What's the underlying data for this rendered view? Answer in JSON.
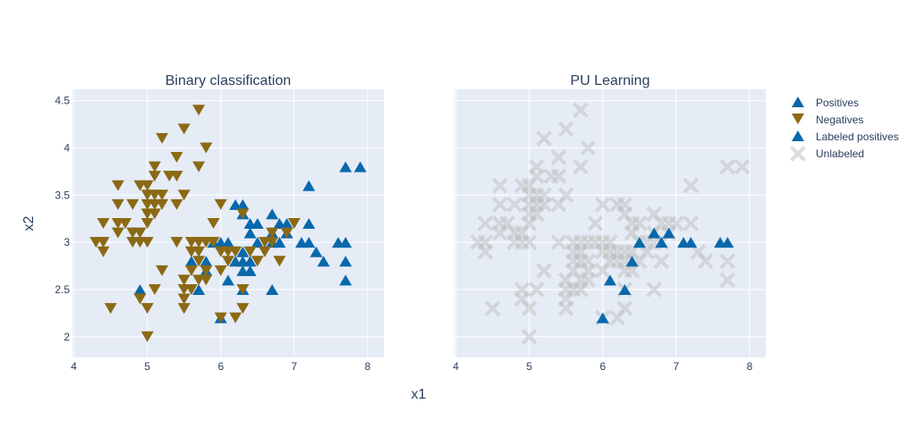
{
  "chart_data": {
    "type": "scatter",
    "xlabel": "x1",
    "ylabel": "x2",
    "xlim": [
      3.98,
      8.22
    ],
    "ylim": [
      1.78,
      4.62
    ],
    "xticks": [
      "4",
      "5",
      "6",
      "7",
      "8"
    ],
    "yticks": [
      "2",
      "2.5",
      "3",
      "3.5",
      "4",
      "4.5"
    ],
    "grid": true,
    "legend_position": "top-right",
    "colors": {
      "positive": "#0868ac",
      "negative": "#8b6914",
      "unlabeled": "#c0c0c0",
      "plot_bg": "#e5ecf6",
      "grid": "#ffffff",
      "text": "#2a3f5f"
    },
    "legend": [
      "Positives",
      "Negatives",
      "Labeled positives",
      "Unlabeled"
    ],
    "panels": [
      {
        "title": "Binary classification",
        "series": [
          {
            "name": "Positives",
            "marker": "triangle-up",
            "points": [
              [
                4.9,
                2.5
              ],
              [
                5.6,
                2.8
              ],
              [
                5.7,
                2.5
              ],
              [
                5.8,
                2.7
              ],
              [
                5.8,
                2.8
              ],
              [
                5.9,
                3.0
              ],
              [
                6.0,
                2.2
              ],
              [
                6.0,
                3.0
              ],
              [
                6.1,
                2.6
              ],
              [
                6.1,
                3.0
              ],
              [
                6.2,
                2.8
              ],
              [
                6.2,
                3.4
              ],
              [
                6.3,
                2.5
              ],
              [
                6.3,
                2.7
              ],
              [
                6.3,
                2.8
              ],
              [
                6.3,
                2.9
              ],
              [
                6.3,
                3.3
              ],
              [
                6.3,
                3.4
              ],
              [
                6.4,
                2.7
              ],
              [
                6.4,
                2.8
              ],
              [
                6.4,
                3.1
              ],
              [
                6.4,
                3.2
              ],
              [
                6.5,
                3.0
              ],
              [
                6.5,
                3.2
              ],
              [
                6.7,
                2.5
              ],
              [
                6.7,
                3.0
              ],
              [
                6.7,
                3.1
              ],
              [
                6.7,
                3.3
              ],
              [
                6.8,
                3.0
              ],
              [
                6.8,
                3.2
              ],
              [
                6.9,
                3.1
              ],
              [
                6.9,
                3.2
              ],
              [
                7.1,
                3.0
              ],
              [
                7.2,
                3.0
              ],
              [
                7.2,
                3.2
              ],
              [
                7.2,
                3.6
              ],
              [
                7.3,
                2.9
              ],
              [
                7.4,
                2.8
              ],
              [
                7.6,
                3.0
              ],
              [
                7.7,
                2.6
              ],
              [
                7.7,
                2.8
              ],
              [
                7.7,
                3.0
              ],
              [
                7.7,
                3.8
              ],
              [
                7.9,
                3.8
              ]
            ]
          },
          {
            "name": "Negatives",
            "marker": "triangle-down",
            "points": [
              [
                4.3,
                3.0
              ],
              [
                4.4,
                2.9
              ],
              [
                4.4,
                3.0
              ],
              [
                4.4,
                3.2
              ],
              [
                4.5,
                2.3
              ],
              [
                4.6,
                3.1
              ],
              [
                4.6,
                3.2
              ],
              [
                4.6,
                3.4
              ],
              [
                4.6,
                3.6
              ],
              [
                4.7,
                3.2
              ],
              [
                4.8,
                3.0
              ],
              [
                4.8,
                3.1
              ],
              [
                4.8,
                3.4
              ],
              [
                4.9,
                2.4
              ],
              [
                4.9,
                3.0
              ],
              [
                4.9,
                3.1
              ],
              [
                4.9,
                3.6
              ],
              [
                5.0,
                2.0
              ],
              [
                5.0,
                2.3
              ],
              [
                5.0,
                3.0
              ],
              [
                5.0,
                3.2
              ],
              [
                5.0,
                3.3
              ],
              [
                5.0,
                3.4
              ],
              [
                5.0,
                3.5
              ],
              [
                5.0,
                3.6
              ],
              [
                5.1,
                2.5
              ],
              [
                5.1,
                3.3
              ],
              [
                5.1,
                3.4
              ],
              [
                5.1,
                3.5
              ],
              [
                5.1,
                3.7
              ],
              [
                5.1,
                3.8
              ],
              [
                5.2,
                2.7
              ],
              [
                5.2,
                3.4
              ],
              [
                5.2,
                3.5
              ],
              [
                5.2,
                4.1
              ],
              [
                5.3,
                3.7
              ],
              [
                5.4,
                3.0
              ],
              [
                5.4,
                3.4
              ],
              [
                5.4,
                3.7
              ],
              [
                5.4,
                3.9
              ],
              [
                5.5,
                2.3
              ],
              [
                5.5,
                2.4
              ],
              [
                5.5,
                2.5
              ],
              [
                5.5,
                2.6
              ],
              [
                5.5,
                3.5
              ],
              [
                5.5,
                4.2
              ],
              [
                5.6,
                2.5
              ],
              [
                5.6,
                2.7
              ],
              [
                5.6,
                2.9
              ],
              [
                5.6,
                3.0
              ],
              [
                5.7,
                2.6
              ],
              [
                5.7,
                2.8
              ],
              [
                5.7,
                2.9
              ],
              [
                5.7,
                3.0
              ],
              [
                5.7,
                3.8
              ],
              [
                5.7,
                4.4
              ],
              [
                5.8,
                2.6
              ],
              [
                5.8,
                2.7
              ],
              [
                5.8,
                3.0
              ],
              [
                5.8,
                4.0
              ],
              [
                5.9,
                3.0
              ],
              [
                5.9,
                3.2
              ],
              [
                6.0,
                2.2
              ],
              [
                6.0,
                2.7
              ],
              [
                6.0,
                2.9
              ],
              [
                6.0,
                3.4
              ],
              [
                6.1,
                2.8
              ],
              [
                6.1,
                2.9
              ],
              [
                6.2,
                2.2
              ],
              [
                6.2,
                2.9
              ],
              [
                6.3,
                2.3
              ],
              [
                6.3,
                2.5
              ],
              [
                6.3,
                3.3
              ],
              [
                6.4,
                2.9
              ],
              [
                6.5,
                2.8
              ],
              [
                6.6,
                2.9
              ],
              [
                6.6,
                3.0
              ],
              [
                6.7,
                3.0
              ],
              [
                6.7,
                3.1
              ],
              [
                6.8,
                2.8
              ],
              [
                6.9,
                3.1
              ],
              [
                7.0,
                3.2
              ]
            ]
          }
        ]
      },
      {
        "title": "PU Learning",
        "series": [
          {
            "name": "Unlabeled",
            "marker": "x",
            "points": [
              [
                4.3,
                3.0
              ],
              [
                4.4,
                2.9
              ],
              [
                4.4,
                3.0
              ],
              [
                4.4,
                3.2
              ],
              [
                4.5,
                2.3
              ],
              [
                4.6,
                3.1
              ],
              [
                4.6,
                3.2
              ],
              [
                4.6,
                3.4
              ],
              [
                4.6,
                3.6
              ],
              [
                4.7,
                3.2
              ],
              [
                4.8,
                3.0
              ],
              [
                4.8,
                3.1
              ],
              [
                4.8,
                3.4
              ],
              [
                4.9,
                2.4
              ],
              [
                4.9,
                2.5
              ],
              [
                4.9,
                3.0
              ],
              [
                4.9,
                3.1
              ],
              [
                4.9,
                3.6
              ],
              [
                5.0,
                2.0
              ],
              [
                5.0,
                2.3
              ],
              [
                5.0,
                3.0
              ],
              [
                5.0,
                3.2
              ],
              [
                5.0,
                3.3
              ],
              [
                5.0,
                3.4
              ],
              [
                5.0,
                3.5
              ],
              [
                5.0,
                3.6
              ],
              [
                5.1,
                2.5
              ],
              [
                5.1,
                3.3
              ],
              [
                5.1,
                3.4
              ],
              [
                5.1,
                3.5
              ],
              [
                5.1,
                3.7
              ],
              [
                5.1,
                3.8
              ],
              [
                5.2,
                2.7
              ],
              [
                5.2,
                3.4
              ],
              [
                5.2,
                3.5
              ],
              [
                5.2,
                4.1
              ],
              [
                5.3,
                3.7
              ],
              [
                5.4,
                3.0
              ],
              [
                5.4,
                3.4
              ],
              [
                5.4,
                3.7
              ],
              [
                5.4,
                3.9
              ],
              [
                5.5,
                2.3
              ],
              [
                5.5,
                2.4
              ],
              [
                5.5,
                2.5
              ],
              [
                5.5,
                2.6
              ],
              [
                5.5,
                3.5
              ],
              [
                5.5,
                4.2
              ],
              [
                5.6,
                2.5
              ],
              [
                5.6,
                2.7
              ],
              [
                5.6,
                2.8
              ],
              [
                5.6,
                2.9
              ],
              [
                5.6,
                3.0
              ],
              [
                5.7,
                2.5
              ],
              [
                5.7,
                2.6
              ],
              [
                5.7,
                2.8
              ],
              [
                5.7,
                2.9
              ],
              [
                5.7,
                3.0
              ],
              [
                5.7,
                3.8
              ],
              [
                5.7,
                4.4
              ],
              [
                5.8,
                2.6
              ],
              [
                5.8,
                2.7
              ],
              [
                5.8,
                2.8
              ],
              [
                5.8,
                3.0
              ],
              [
                5.8,
                4.0
              ],
              [
                5.9,
                3.0
              ],
              [
                5.9,
                3.2
              ],
              [
                6.0,
                2.2
              ],
              [
                6.0,
                2.7
              ],
              [
                6.0,
                2.9
              ],
              [
                6.0,
                3.0
              ],
              [
                6.0,
                3.4
              ],
              [
                6.1,
                2.8
              ],
              [
                6.1,
                2.9
              ],
              [
                6.1,
                3.0
              ],
              [
                6.2,
                2.2
              ],
              [
                6.2,
                2.8
              ],
              [
                6.2,
                2.9
              ],
              [
                6.2,
                3.4
              ],
              [
                6.3,
                2.3
              ],
              [
                6.3,
                2.5
              ],
              [
                6.3,
                2.7
              ],
              [
                6.3,
                2.8
              ],
              [
                6.3,
                2.9
              ],
              [
                6.3,
                3.3
              ],
              [
                6.3,
                3.4
              ],
              [
                6.4,
                2.7
              ],
              [
                6.4,
                2.9
              ],
              [
                6.4,
                3.1
              ],
              [
                6.4,
                3.2
              ],
              [
                6.5,
                2.8
              ],
              [
                6.5,
                3.0
              ],
              [
                6.5,
                3.2
              ],
              [
                6.6,
                2.9
              ],
              [
                6.6,
                3.0
              ],
              [
                6.7,
                2.5
              ],
              [
                6.7,
                3.0
              ],
              [
                6.7,
                3.1
              ],
              [
                6.7,
                3.3
              ],
              [
                6.8,
                2.8
              ],
              [
                6.8,
                3.0
              ],
              [
                6.8,
                3.2
              ],
              [
                6.9,
                3.1
              ],
              [
                6.9,
                3.2
              ],
              [
                7.0,
                3.2
              ],
              [
                7.2,
                3.2
              ],
              [
                7.2,
                3.6
              ],
              [
                7.3,
                2.9
              ],
              [
                7.4,
                2.8
              ],
              [
                7.7,
                2.6
              ],
              [
                7.7,
                2.8
              ],
              [
                7.7,
                3.8
              ],
              [
                7.9,
                3.8
              ]
            ]
          },
          {
            "name": "Labeled positives",
            "marker": "triangle-up",
            "points": [
              [
                6.0,
                2.2
              ],
              [
                6.1,
                2.6
              ],
              [
                6.3,
                2.5
              ],
              [
                6.4,
                2.8
              ],
              [
                6.5,
                3.0
              ],
              [
                6.7,
                3.1
              ],
              [
                6.8,
                3.0
              ],
              [
                6.9,
                3.1
              ],
              [
                7.1,
                3.0
              ],
              [
                7.2,
                3.0
              ],
              [
                7.6,
                3.0
              ],
              [
                7.7,
                3.0
              ]
            ]
          }
        ]
      }
    ]
  }
}
